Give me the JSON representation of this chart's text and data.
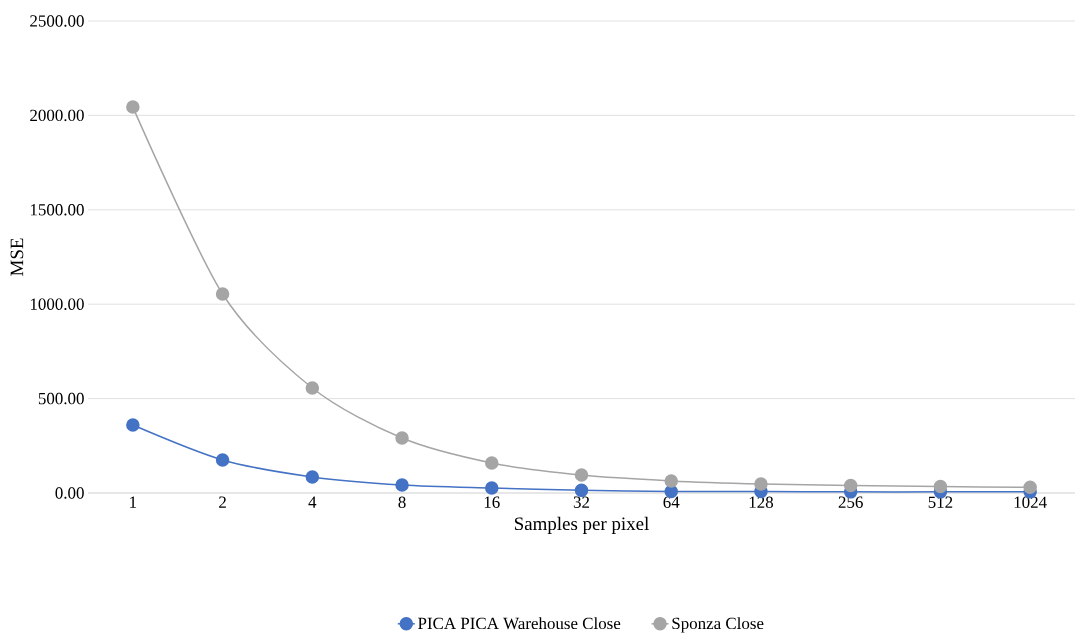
{
  "chart_data": {
    "type": "line",
    "xlabel": "Samples per pixel",
    "ylabel": "MSE",
    "categories": [
      "1",
      "2",
      "4",
      "8",
      "16",
      "32",
      "64",
      "128",
      "256",
      "512",
      "1024"
    ],
    "series": [
      {
        "name": "PICA PICA Warehouse Close",
        "color": "#4472c4",
        "values": [
          360,
          175,
          85,
          42,
          26,
          14,
          8,
          8,
          6,
          6,
          6
        ]
      },
      {
        "name": "Sponza Close",
        "color": "#a5a5a5",
        "values": [
          2044,
          1054,
          556,
          291,
          159,
          95,
          64,
          48,
          40,
          34,
          30
        ]
      }
    ],
    "ylim": [
      0,
      2500
    ],
    "yticks": [
      {
        "value": 0,
        "label": "0.00"
      },
      {
        "value": 500,
        "label": "500.00"
      },
      {
        "value": 1000,
        "label": "1000.00"
      },
      {
        "value": 1500,
        "label": "1500.00"
      },
      {
        "value": 2000,
        "label": "2000.00"
      },
      {
        "value": 2500,
        "label": "2500.00"
      }
    ],
    "grid": "y",
    "legend": "bottom",
    "marker": "circle",
    "line_style": "solid"
  }
}
